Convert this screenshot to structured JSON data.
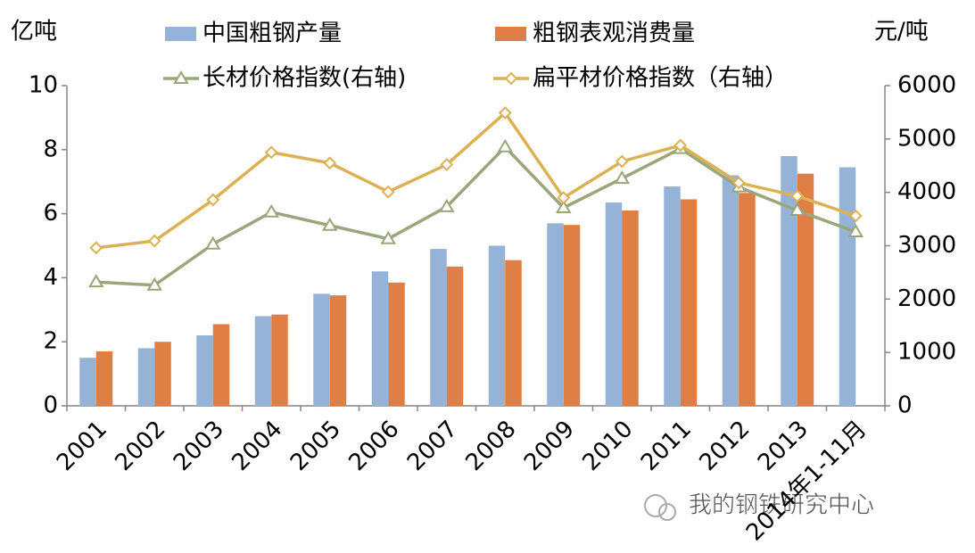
{
  "chart_data": {
    "type": "bar-line",
    "y_label": "亿吨",
    "y2_label": "元/吨",
    "categories": [
      "2001",
      "2002",
      "2003",
      "2004",
      "2005",
      "2006",
      "2007",
      "2008",
      "2009",
      "2010",
      "2011",
      "2012",
      "2013",
      "2014年1-11月"
    ],
    "series": [
      {
        "name": "中国粗钢产量",
        "type": "bar",
        "color": "#95b3d7",
        "values": [
          1.5,
          1.8,
          2.2,
          2.8,
          3.5,
          4.2,
          4.9,
          5.0,
          5.7,
          6.35,
          6.85,
          7.2,
          7.8,
          7.45
        ]
      },
      {
        "name": "粗钢表观消费量",
        "type": "bar",
        "color": "#e07f45",
        "values": [
          1.7,
          2.0,
          2.55,
          2.85,
          3.45,
          3.85,
          4.35,
          4.55,
          5.65,
          6.1,
          6.45,
          6.65,
          7.25,
          null
        ]
      },
      {
        "name": "长材价格指数(右轴)",
        "type": "line",
        "marker": "triangle",
        "axis": "y2",
        "color": "#9aa67c",
        "values": [
          2320,
          2260,
          3030,
          3630,
          3380,
          3130,
          3730,
          4850,
          3710,
          4260,
          4820,
          4100,
          3660,
          3260
        ]
      },
      {
        "name": "扁平材价格指数（右轴）",
        "type": "line",
        "marker": "diamond",
        "axis": "y2",
        "color": "#dcb154",
        "values": [
          2960,
          3090,
          3860,
          4750,
          4550,
          4010,
          4520,
          5490,
          3900,
          4580,
          4880,
          4180,
          3930,
          3560
        ]
      }
    ],
    "ylim": [
      0,
      10
    ],
    "yticks": [
      0,
      2,
      4,
      6,
      8,
      10
    ],
    "y2lim": [
      0,
      6000
    ],
    "y2ticks": [
      0,
      1000,
      2000,
      3000,
      4000,
      5000,
      6000
    ],
    "watermark": "我的钢铁研究中心"
  }
}
